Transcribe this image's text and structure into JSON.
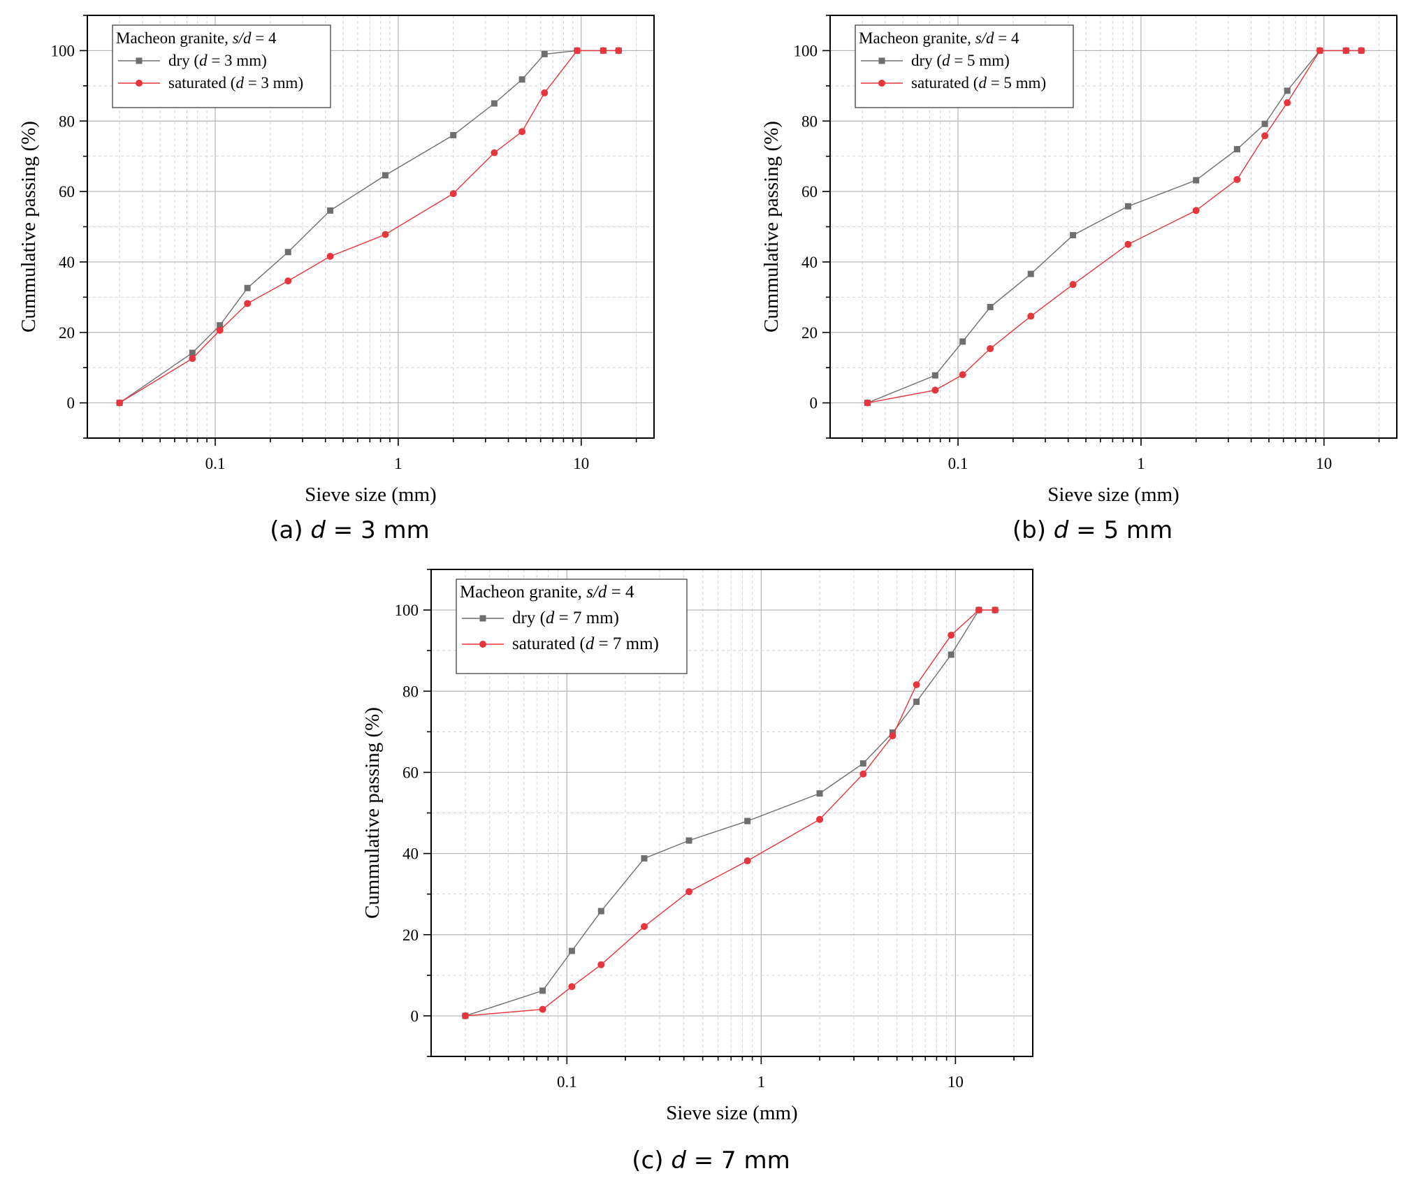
{
  "chart_data": [
    {
      "type": "line",
      "xscale": "log",
      "xlabel": "Sieve size (mm)",
      "ylabel": "Cummulative passing (%)",
      "xlim": [
        0.02,
        25
      ],
      "ylim": [
        -10,
        110
      ],
      "xticks": [
        0.1,
        1,
        10
      ],
      "xtick_labels": [
        "0.1",
        "1",
        "10"
      ],
      "yticks": [
        0,
        20,
        40,
        60,
        80,
        100
      ],
      "ytick_labels": [
        "0",
        "20",
        "40",
        "60",
        "80",
        "100"
      ],
      "grid": true,
      "caption": {
        "prefix": "(a) ",
        "var": "d",
        "rest": " = 3 mm"
      },
      "legend": {
        "placement": "top-left",
        "title_prefix": "Macheon granite, ",
        "title_var": "s/d",
        "title_suffix": " = 4",
        "entries": [
          {
            "prefix": "dry (",
            "var": "d",
            "suffix": " = 3 mm)"
          },
          {
            "prefix": "saturated (",
            "var": "d",
            "suffix": " = 3 mm)"
          }
        ]
      },
      "series": [
        {
          "color": "#6e6e6e",
          "marker": "square",
          "points": [
            [
              0.03,
              0
            ],
            [
              0.075,
              14.2
            ],
            [
              0.106,
              22
            ],
            [
              0.15,
              32.6
            ],
            [
              0.25,
              42.8
            ],
            [
              0.425,
              54.6
            ],
            [
              0.85,
              64.6
            ],
            [
              2,
              76
            ],
            [
              3.35,
              85
            ],
            [
              4.75,
              91.8
            ],
            [
              6.3,
              99
            ],
            [
              9.5,
              100
            ],
            [
              13.2,
              100
            ],
            [
              16,
              100
            ]
          ]
        },
        {
          "color": "#e8343c",
          "marker": "circle",
          "points": [
            [
              0.03,
              0
            ],
            [
              0.075,
              12.6
            ],
            [
              0.106,
              20.6
            ],
            [
              0.15,
              28.2
            ],
            [
              0.25,
              34.6
            ],
            [
              0.425,
              41.6
            ],
            [
              0.85,
              47.8
            ],
            [
              2,
              59.4
            ],
            [
              3.35,
              71
            ],
            [
              4.75,
              77
            ],
            [
              6.3,
              88
            ],
            [
              9.5,
              100
            ],
            [
              13.2,
              100
            ],
            [
              16,
              100
            ]
          ]
        }
      ]
    },
    {
      "type": "line",
      "xscale": "log",
      "xlabel": "Sieve size (mm)",
      "ylabel": "Cummulative passing (%)",
      "xlim": [
        0.02,
        25
      ],
      "ylim": [
        -10,
        110
      ],
      "xticks": [
        0.1,
        1,
        10
      ],
      "xtick_labels": [
        "0.1",
        "1",
        "10"
      ],
      "yticks": [
        0,
        20,
        40,
        60,
        80,
        100
      ],
      "ytick_labels": [
        "0",
        "20",
        "40",
        "60",
        "80",
        "100"
      ],
      "grid": true,
      "caption": {
        "prefix": "(b) ",
        "var": "d",
        "rest": " = 5 mm"
      },
      "legend": {
        "placement": "top-left",
        "title_prefix": "Macheon granite, ",
        "title_var": "s/d",
        "title_suffix": " = 4",
        "entries": [
          {
            "prefix": "dry (",
            "var": "d",
            "suffix": " = 5 mm)"
          },
          {
            "prefix": "saturated (",
            "var": "d",
            "suffix": " = 5 mm)"
          }
        ]
      },
      "series": [
        {
          "color": "#6e6e6e",
          "marker": "square",
          "points": [
            [
              0.032,
              0
            ],
            [
              0.075,
              7.8
            ],
            [
              0.106,
              17.4
            ],
            [
              0.15,
              27.2
            ],
            [
              0.25,
              36.6
            ],
            [
              0.425,
              47.6
            ],
            [
              0.85,
              55.8
            ],
            [
              2,
              63.2
            ],
            [
              3.35,
              72
            ],
            [
              4.75,
              79.2
            ],
            [
              6.3,
              88.6
            ],
            [
              9.5,
              100
            ],
            [
              13.2,
              100
            ],
            [
              16,
              100
            ]
          ]
        },
        {
          "color": "#e8343c",
          "marker": "circle",
          "points": [
            [
              0.032,
              0
            ],
            [
              0.075,
              3.6
            ],
            [
              0.106,
              8
            ],
            [
              0.15,
              15.4
            ],
            [
              0.25,
              24.6
            ],
            [
              0.425,
              33.6
            ],
            [
              0.85,
              45
            ],
            [
              2,
              54.6
            ],
            [
              3.35,
              63.4
            ],
            [
              4.75,
              75.8
            ],
            [
              6.3,
              85.2
            ],
            [
              9.5,
              100
            ],
            [
              13.2,
              100
            ],
            [
              16,
              100
            ]
          ]
        }
      ]
    },
    {
      "type": "line",
      "xscale": "log",
      "xlabel": "Sieve size (mm)",
      "ylabel": "Cummulative passing (%)",
      "xlim": [
        0.02,
        25
      ],
      "ylim": [
        -10,
        110
      ],
      "xticks": [
        0.1,
        1,
        10
      ],
      "xtick_labels": [
        "0.1",
        "1",
        "10"
      ],
      "yticks": [
        0,
        20,
        40,
        60,
        80,
        100
      ],
      "ytick_labels": [
        "0",
        "20",
        "40",
        "60",
        "80",
        "100"
      ],
      "grid": true,
      "caption": {
        "prefix": "(c) ",
        "var": "d",
        "rest": " = 7 mm"
      },
      "legend": {
        "placement": "top-left",
        "title_prefix": "Macheon granite, ",
        "title_var": "s/d",
        "title_suffix": " = 4",
        "entries": [
          {
            "prefix": "dry (",
            "var": "d",
            "suffix": " = 7 mm)"
          },
          {
            "prefix": "saturated (",
            "var": "d",
            "suffix": " = 7 mm)"
          }
        ]
      },
      "series": [
        {
          "color": "#6e6e6e",
          "marker": "square",
          "points": [
            [
              0.03,
              0
            ],
            [
              0.075,
              6.2
            ],
            [
              0.106,
              16
            ],
            [
              0.15,
              25.8
            ],
            [
              0.25,
              38.8
            ],
            [
              0.425,
              43.2
            ],
            [
              0.85,
              48
            ],
            [
              2,
              54.8
            ],
            [
              3.35,
              62.2
            ],
            [
              4.75,
              69.8
            ],
            [
              6.3,
              77.4
            ],
            [
              9.5,
              89
            ],
            [
              13.2,
              100
            ],
            [
              16,
              100
            ]
          ]
        },
        {
          "color": "#e8343c",
          "marker": "circle",
          "points": [
            [
              0.03,
              0
            ],
            [
              0.075,
              1.6
            ],
            [
              0.106,
              7.2
            ],
            [
              0.15,
              12.6
            ],
            [
              0.25,
              22
            ],
            [
              0.425,
              30.6
            ],
            [
              0.85,
              38.2
            ],
            [
              2,
              48.4
            ],
            [
              3.35,
              59.6
            ],
            [
              4.75,
              69
            ],
            [
              6.3,
              81.6
            ],
            [
              9.5,
              93.8
            ],
            [
              13.2,
              100
            ],
            [
              16,
              100
            ]
          ]
        }
      ]
    }
  ]
}
